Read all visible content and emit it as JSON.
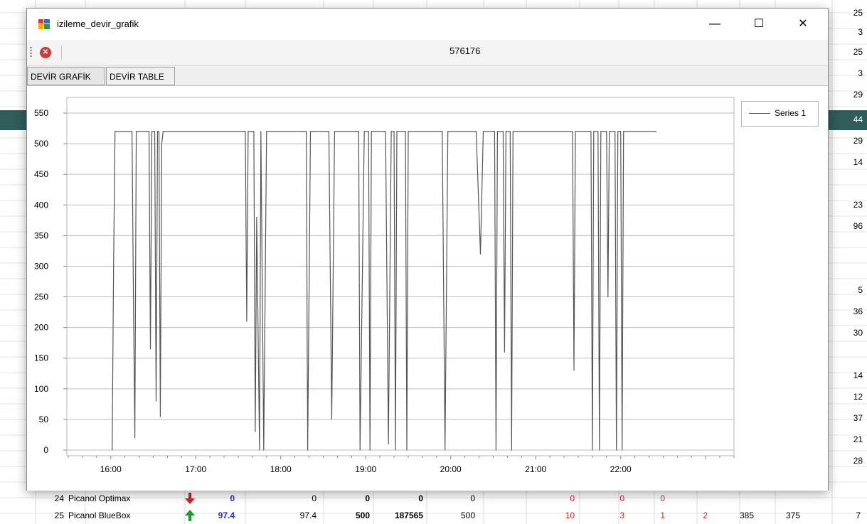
{
  "background_app": {
    "right_column_values": [
      "25",
      "3",
      "25",
      "3",
      "29",
      "44",
      "29",
      "14",
      "",
      "23",
      "96",
      "",
      "",
      "5",
      "36",
      "30",
      "",
      "14",
      "12",
      "37",
      "21",
      "28"
    ],
    "selected_row_value": "44",
    "rows": [
      {
        "no": "24",
        "name": "Picanol Optimax",
        "trend": "down",
        "efficiency": "0",
        "c1": "0",
        "c2": "0",
        "c3": "0",
        "c4": "0",
        "r1": "0",
        "r2": "0",
        "r3": "0",
        "r4": "",
        "r5": "",
        "r6": "",
        "r7": ""
      },
      {
        "no": "25",
        "name": "Picanol BlueBox",
        "trend": "up",
        "efficiency": "97.4",
        "c1": "97.4",
        "c2": "500",
        "c3": "187565",
        "c4": "500",
        "r1": "10",
        "r2": "3",
        "r3": "1",
        "r4": "2",
        "r5": "385",
        "r6": "375",
        "r7": "7"
      }
    ],
    "colors": {
      "selected_row": "#2e5d5a",
      "trend_down": "#d42020",
      "trend_up": "#1a9a2a",
      "efficiency": "#1a2fd6",
      "red_values": "#e02020"
    }
  },
  "window": {
    "title": "izileme_devir_grafik",
    "buttons": {
      "minimize": "—",
      "maximize": "☐",
      "close": "✕"
    },
    "toolbar": {
      "stop_icon": "stop-icon",
      "value": "576176"
    },
    "tabs": [
      {
        "label": "DEVİR GRAFİK",
        "active": true
      },
      {
        "label": "DEVİR TABLE",
        "active": false
      }
    ]
  },
  "chart_data": {
    "type": "line",
    "title": "",
    "xlabel": "",
    "ylabel": "",
    "ylim": [
      0,
      550
    ],
    "xlim": [
      "15:30",
      "23:20"
    ],
    "y_ticks": [
      0,
      50,
      100,
      150,
      200,
      250,
      300,
      350,
      400,
      450,
      500,
      550
    ],
    "x_ticks": [
      "16:00",
      "17:00",
      "18:00",
      "19:00",
      "20:00",
      "21:00",
      "22:00"
    ],
    "grid": true,
    "legend_position": "top-right",
    "series": [
      {
        "name": "Series 1",
        "color": "#555555",
        "points": [
          [
            "16:01",
            0
          ],
          [
            "16:02",
            300
          ],
          [
            "16:03",
            520
          ],
          [
            "16:15",
            520
          ],
          [
            "16:16",
            250
          ],
          [
            "16:17",
            20
          ],
          [
            "16:18",
            520
          ],
          [
            "16:27",
            520
          ],
          [
            "16:28",
            165
          ],
          [
            "16:29",
            520
          ],
          [
            "16:31",
            520
          ],
          [
            "16:32",
            80
          ],
          [
            "16:33",
            520
          ],
          [
            "16:34",
            520
          ],
          [
            "16:35",
            55
          ],
          [
            "16:36",
            500
          ],
          [
            "16:37",
            520
          ],
          [
            "17:35",
            520
          ],
          [
            "17:36",
            210
          ],
          [
            "17:37",
            520
          ],
          [
            "17:41",
            520
          ],
          [
            "17:42",
            30
          ],
          [
            "17:43",
            380
          ],
          [
            "17:45",
            0
          ],
          [
            "17:46",
            520
          ],
          [
            "17:48",
            0
          ],
          [
            "17:50",
            520
          ],
          [
            "18:18",
            520
          ],
          [
            "18:19",
            0
          ],
          [
            "18:21",
            520
          ],
          [
            "18:34",
            520
          ],
          [
            "18:36",
            50
          ],
          [
            "18:38",
            520
          ],
          [
            "18:55",
            520
          ],
          [
            "18:56",
            0
          ],
          [
            "18:59",
            520
          ],
          [
            "19:02",
            520
          ],
          [
            "19:03",
            0
          ],
          [
            "19:04",
            520
          ],
          [
            "19:14",
            520
          ],
          [
            "19:16",
            10
          ],
          [
            "19:18",
            520
          ],
          [
            "19:20",
            520
          ],
          [
            "19:21",
            0
          ],
          [
            "19:22",
            520
          ],
          [
            "19:28",
            520
          ],
          [
            "19:29",
            0
          ],
          [
            "19:30",
            520
          ],
          [
            "19:54",
            520
          ],
          [
            "19:56",
            0
          ],
          [
            "19:58",
            520
          ],
          [
            "20:18",
            520
          ],
          [
            "20:21",
            320
          ],
          [
            "20:23",
            520
          ],
          [
            "20:31",
            520
          ],
          [
            "20:32",
            0
          ],
          [
            "20:33",
            520
          ],
          [
            "20:37",
            520
          ],
          [
            "20:38",
            160
          ],
          [
            "20:39",
            520
          ],
          [
            "20:41",
            520
          ],
          [
            "20:42",
            520
          ],
          [
            "20:43",
            0
          ],
          [
            "20:44",
            520
          ],
          [
            "21:26",
            520
          ],
          [
            "21:27",
            130
          ],
          [
            "21:28",
            520
          ],
          [
            "21:39",
            520
          ],
          [
            "21:40",
            0
          ],
          [
            "21:41",
            520
          ],
          [
            "21:44",
            520
          ],
          [
            "21:45",
            0
          ],
          [
            "21:46",
            520
          ],
          [
            "21:50",
            520
          ],
          [
            "21:51",
            250
          ],
          [
            "21:52",
            520
          ],
          [
            "21:56",
            520
          ],
          [
            "21:57",
            0
          ],
          [
            "21:58",
            520
          ],
          [
            "22:00",
            520
          ],
          [
            "22:01",
            0
          ],
          [
            "22:02",
            520
          ],
          [
            "22:25",
            520
          ]
        ]
      }
    ]
  }
}
